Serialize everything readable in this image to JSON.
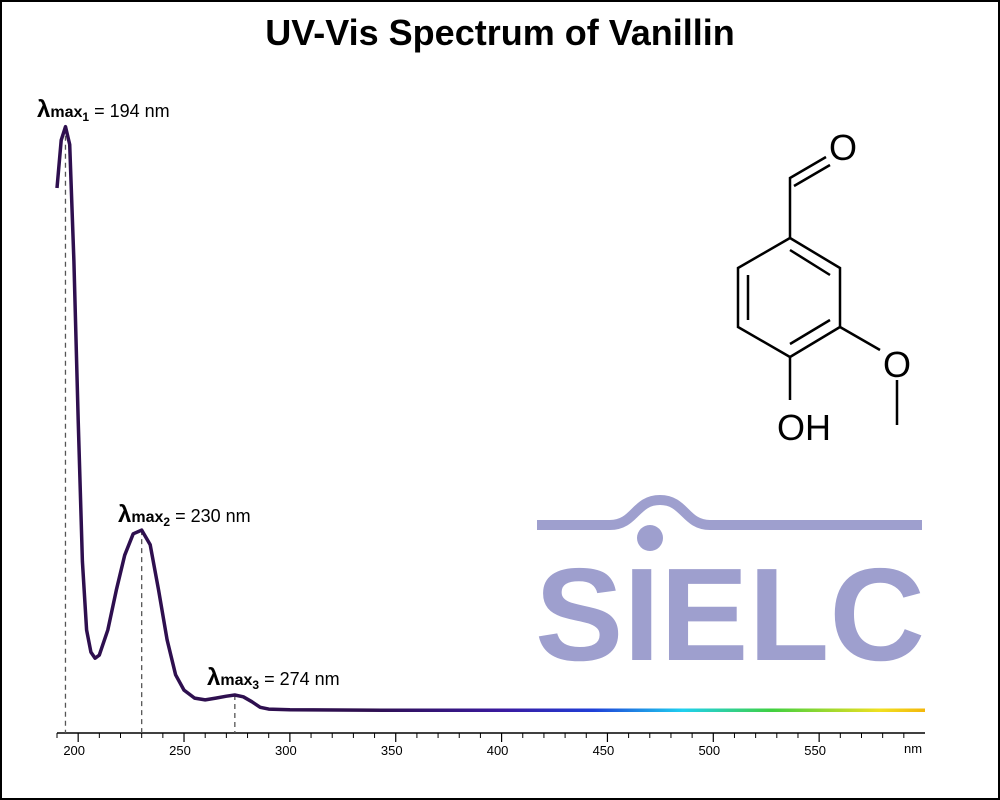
{
  "chart_data": {
    "type": "line",
    "title": "UV-Vis Spectrum of Vanillin",
    "x_label": "nm",
    "x": [
      190,
      192,
      194,
      196,
      198,
      200,
      202,
      204,
      206,
      208,
      210,
      214,
      218,
      222,
      226,
      230,
      234,
      238,
      242,
      246,
      250,
      255,
      260,
      265,
      270,
      274,
      278,
      282,
      286,
      290,
      300,
      350,
      400,
      450,
      500,
      550,
      600
    ],
    "series": [
      {
        "name": "Vanillin",
        "color": "#2e0f4f",
        "values": [
          0.889,
          0.967,
          0.989,
          0.96,
          0.77,
          0.51,
          0.28,
          0.168,
          0.132,
          0.122,
          0.127,
          0.168,
          0.233,
          0.29,
          0.325,
          0.331,
          0.307,
          0.233,
          0.152,
          0.095,
          0.07,
          0.057,
          0.054,
          0.057,
          0.06,
          0.062,
          0.059,
          0.051,
          0.042,
          0.039,
          0.038,
          0.037,
          0.037,
          0.037,
          0.037,
          0.037,
          0.037
        ]
      }
    ],
    "xlim": [
      190,
      600
    ],
    "ylim": [
      0,
      1
    ],
    "xticks": [
      200,
      250,
      300,
      350,
      400,
      450,
      500,
      550
    ],
    "xminorticks": [
      190,
      210,
      220,
      230,
      240,
      260,
      270,
      280,
      290,
      310,
      320,
      330,
      340,
      360,
      370,
      380,
      390,
      410,
      420,
      430,
      440,
      460,
      470,
      480,
      490,
      510,
      520,
      530,
      540,
      560,
      570,
      580,
      590
    ],
    "annotations": [
      {
        "x": 194,
        "symbol": "λ",
        "sub": "max",
        "index": "1",
        "text": "= 194 nm"
      },
      {
        "x": 230,
        "symbol": "λ",
        "sub": "max",
        "index": "2",
        "text": "= 230 nm"
      },
      {
        "x": 274,
        "symbol": "λ",
        "sub": "max",
        "index": "3",
        "text": "= 274 nm"
      }
    ]
  },
  "structure": {
    "aldehyde_o": "O",
    "methoxy_o": "O",
    "hydroxyl": "OH"
  },
  "logo": "SIELC"
}
